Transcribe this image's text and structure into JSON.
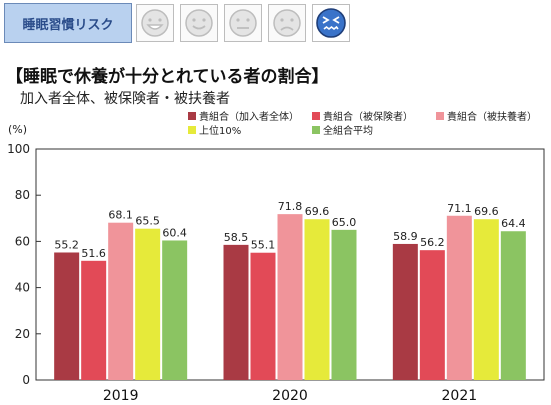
{
  "header": {
    "risk_label": "睡眠習慣リスク",
    "faces": [
      {
        "icon": "big-smile-face-icon",
        "active": false
      },
      {
        "icon": "smile-face-icon",
        "active": false
      },
      {
        "icon": "neutral-face-icon",
        "active": false
      },
      {
        "icon": "sad-face-icon",
        "active": false
      },
      {
        "icon": "distressed-face-icon",
        "active": true
      }
    ]
  },
  "title": "【睡眠で休養が十分とれている者の割合】",
  "subtitle": "加入者全体、被保険者・被扶養者",
  "chart_data": {
    "type": "bar",
    "ylabel": "(%)",
    "ylim": [
      0,
      100
    ],
    "yticks": [
      0,
      20,
      40,
      60,
      80,
      100
    ],
    "categories": [
      "2019",
      "2020",
      "2021"
    ],
    "series": [
      {
        "name": "貴組合（加入者全体）",
        "color": "#a93a44",
        "values": [
          55.2,
          58.5,
          58.9
        ]
      },
      {
        "name": "貴組合（被保険者）",
        "color": "#e24a57",
        "values": [
          51.6,
          55.1,
          56.2
        ]
      },
      {
        "name": "貴組合（被扶養者）",
        "color": "#f0949a",
        "values": [
          68.1,
          71.8,
          71.1
        ]
      },
      {
        "name": "上位10%",
        "color": "#e6ea3a",
        "values": [
          65.5,
          69.6,
          69.6
        ]
      },
      {
        "name": "全組合平均",
        "color": "#8bc462",
        "values": [
          60.4,
          65.0,
          64.4
        ]
      }
    ],
    "value_labels": [
      [
        "55.2",
        "58.5",
        "58.9"
      ],
      [
        "51.6",
        "55.1",
        "56.2"
      ],
      [
        "68.1",
        "71.8",
        "71.1"
      ],
      [
        "65.5",
        "69.6",
        "69.6"
      ],
      [
        "60.4",
        "65.0",
        "64.4"
      ]
    ],
    "legend_position": "top-right",
    "grid": false
  }
}
